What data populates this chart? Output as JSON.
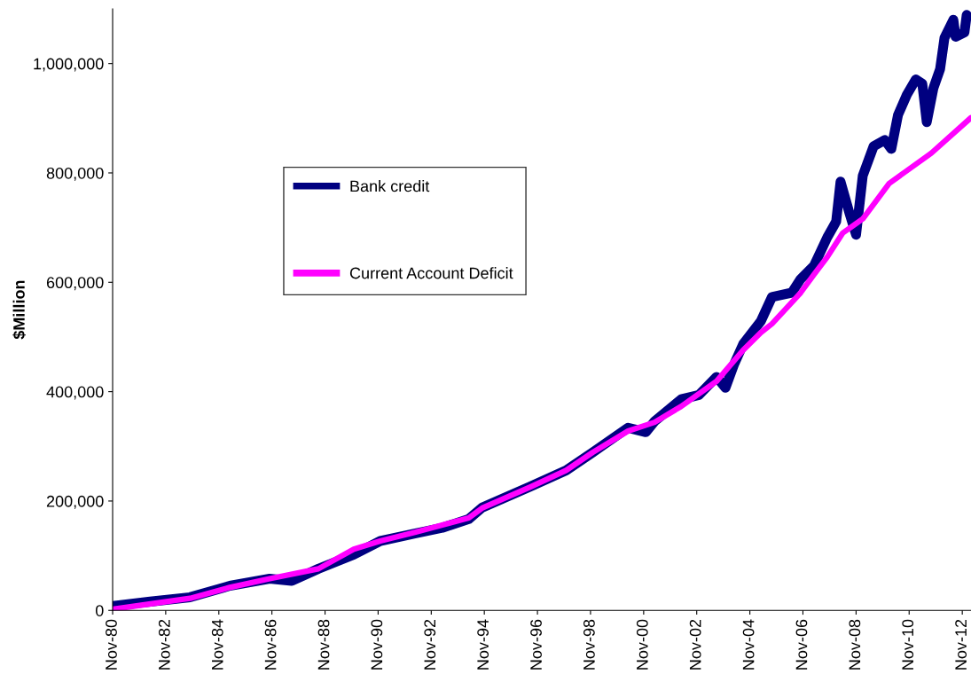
{
  "chart_data": {
    "type": "line",
    "ylabel": "$Million",
    "legend": "top left",
    "grid": false,
    "xlim": [
      "1980-11",
      "2013-03"
    ],
    "ylim": [
      0,
      1100000
    ],
    "yticks": [
      {
        "value": 0,
        "label": "0"
      },
      {
        "value": 200000,
        "label": "200,000"
      },
      {
        "value": 400000,
        "label": "400,000"
      },
      {
        "value": 600000,
        "label": "600,000"
      },
      {
        "value": 800000,
        "label": "800,000"
      },
      {
        "value": 1000000,
        "label": "1,000,000"
      }
    ],
    "xticks": [
      {
        "value": "1980-11",
        "label": "Nov-80"
      },
      {
        "value": "1982-11",
        "label": "Nov-82"
      },
      {
        "value": "1984-11",
        "label": "Nov-84"
      },
      {
        "value": "1986-11",
        "label": "Nov-86"
      },
      {
        "value": "1988-11",
        "label": "Nov-88"
      },
      {
        "value": "1990-11",
        "label": "Nov-90"
      },
      {
        "value": "1992-11",
        "label": "Nov-92"
      },
      {
        "value": "1994-11",
        "label": "Nov-94"
      },
      {
        "value": "1996-11",
        "label": "Nov-96"
      },
      {
        "value": "1998-11",
        "label": "Nov-98"
      },
      {
        "value": "2000-11",
        "label": "Nov-00"
      },
      {
        "value": "2002-11",
        "label": "Nov-02"
      },
      {
        "value": "2004-11",
        "label": "Nov-04"
      },
      {
        "value": "2006-11",
        "label": "Nov-06"
      },
      {
        "value": "2008-11",
        "label": "Nov-08"
      },
      {
        "value": "2010-11",
        "label": "Nov-10"
      },
      {
        "value": "2012-11",
        "label": "Nov-12"
      }
    ],
    "series": [
      {
        "name": "Bank credit",
        "color": "#000080",
        "x": [
          "1980-11",
          "1982-04",
          "1983-10",
          "1985-04",
          "1986-10",
          "1987-08",
          "1988-08",
          "1989-12",
          "1990-12",
          "1992-04",
          "1993-04",
          "1994-04",
          "1994-10",
          "1996-08",
          "1997-12",
          "1998-12",
          "2000-04",
          "2000-12",
          "2001-04",
          "2002-04",
          "2002-12",
          "2003-08",
          "2003-12",
          "2004-04",
          "2004-08",
          "2005-04",
          "2005-09",
          "2006-06",
          "2006-10",
          "2007-04",
          "2007-10",
          "2008-02",
          "2008-04",
          "2008-08",
          "2008-11",
          "2009-02",
          "2009-07",
          "2009-12",
          "2010-03",
          "2010-06",
          "2010-10",
          "2011-02",
          "2011-05",
          "2011-07",
          "2011-10",
          "2012-01",
          "2012-03",
          "2012-07",
          "2012-08",
          "2012-12",
          "2013-01"
        ],
        "values": [
          8000,
          16000,
          24000,
          45000,
          58000,
          54000,
          76000,
          102000,
          127000,
          141000,
          151000,
          167000,
          188000,
          227000,
          256000,
          289000,
          334000,
          326000,
          346000,
          386000,
          394000,
          427000,
          407000,
          451000,
          487000,
          529000,
          573000,
          581000,
          606000,
          630000,
          682000,
          711000,
          784000,
          727000,
          687000,
          795000,
          849000,
          860000,
          844000,
          906000,
          943000,
          971000,
          963000,
          893000,
          955000,
          990000,
          1047000,
          1080000,
          1049000,
          1057000,
          1089000
        ]
      },
      {
        "name": "Current Account Deficit",
        "color": "#ff00ff",
        "x": [
          "1980-11",
          "1983-10",
          "1985-04",
          "1986-10",
          "1988-08",
          "1989-12",
          "1990-12",
          "1992-04",
          "1993-04",
          "1994-04",
          "1994-10",
          "1996-08",
          "1997-12",
          "1998-12",
          "2000-04",
          "2001-04",
          "2002-04",
          "2003-08",
          "2004-08",
          "2005-04",
          "2005-09",
          "2006-10",
          "2007-04",
          "2007-10",
          "2008-05",
          "2009-02",
          "2010-02",
          "2011-09",
          "2013-03"
        ],
        "values": [
          2000,
          22000,
          42000,
          58000,
          76000,
          112000,
          127000,
          143000,
          156000,
          169000,
          187000,
          226000,
          256000,
          289000,
          328000,
          344000,
          373000,
          419000,
          476000,
          508000,
          524000,
          581000,
          614000,
          646000,
          690000,
          716000,
          781000,
          836000,
          901000
        ]
      }
    ]
  }
}
